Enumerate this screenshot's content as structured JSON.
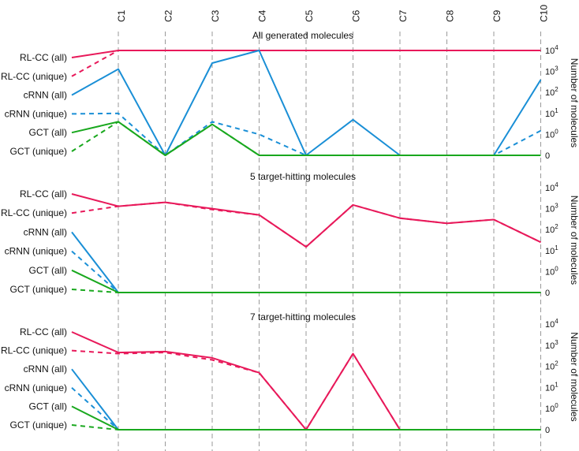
{
  "chart_data": {
    "type": "line",
    "categories": [
      "C1",
      "C2",
      "C3",
      "C4",
      "C5",
      "C6",
      "C7",
      "C8",
      "C9",
      "C10"
    ],
    "colors": {
      "RL-CC": "#e8195a",
      "cRNN": "#1a8fd6",
      "GCT": "#19a81e"
    },
    "y_axis": {
      "label": "Number of molecules",
      "ticks": [
        {
          "value": "0",
          "base": "",
          "exp": ""
        },
        {
          "value": "1",
          "base": "10",
          "exp": "0"
        },
        {
          "value": "10",
          "base": "10",
          "exp": "1"
        },
        {
          "value": "100",
          "base": "10",
          "exp": "2"
        },
        {
          "value": "1000",
          "base": "10",
          "exp": "3"
        },
        {
          "value": "10000",
          "base": "10",
          "exp": "4"
        }
      ]
    },
    "panels": [
      {
        "title": "All generated molecules",
        "series": [
          {
            "name": "RL-CC (all)",
            "values": [
              10000,
              10000,
              10000,
              10000,
              10000,
              10000,
              10000,
              10000,
              10000,
              10000
            ]
          },
          {
            "name": "RL-CC (unique)",
            "values": [
              10000,
              10000,
              10000,
              10000,
              10000,
              10000,
              10000,
              10000,
              10000,
              10000
            ]
          },
          {
            "name": "cRNN (all)",
            "values": [
              1300,
              0,
              2500,
              10000,
              0,
              5,
              0,
              0,
              0,
              400
            ]
          },
          {
            "name": "cRNN (unique)",
            "values": [
              10,
              0,
              4,
              1,
              0,
              0,
              0,
              0,
              0,
              1.5
            ]
          },
          {
            "name": "GCT (all)",
            "values": [
              4,
              0,
              3,
              0,
              0,
              0,
              0,
              0,
              0,
              0
            ]
          },
          {
            "name": "GCT (unique)",
            "values": [
              4,
              0,
              3,
              0,
              0,
              0,
              0,
              0,
              0,
              0
            ]
          }
        ]
      },
      {
        "title": "5 target-hitting molecules",
        "series": [
          {
            "name": "RL-CC (all)",
            "values": [
              1300,
              2000,
              1000,
              500,
              15,
              1500,
              350,
              200,
              300,
              25
            ]
          },
          {
            "name": "RL-CC (unique)",
            "values": [
              1300,
              2000,
              900,
              500,
              15,
              1500,
              350,
              200,
              300,
              25
            ]
          },
          {
            "name": "cRNN (all)",
            "values": [
              0,
              0,
              0,
              0,
              0,
              0,
              0,
              0,
              0,
              0
            ]
          },
          {
            "name": "cRNN (unique)",
            "values": [
              0,
              0,
              0,
              0,
              0,
              0,
              0,
              0,
              0,
              0
            ]
          },
          {
            "name": "GCT (all)",
            "values": [
              0,
              0,
              0,
              0,
              0,
              0,
              0,
              0,
              0,
              0
            ]
          },
          {
            "name": "GCT (unique)",
            "values": [
              0,
              0,
              0,
              0,
              0,
              0,
              0,
              0,
              0,
              0
            ]
          }
        ]
      },
      {
        "title": "7 target-hitting molecules",
        "series": [
          {
            "name": "RL-CC (all)",
            "values": [
              450,
              500,
              250,
              50,
              0,
              400,
              0,
              0,
              0,
              0
            ]
          },
          {
            "name": "RL-CC (unique)",
            "values": [
              400,
              450,
              200,
              50,
              0,
              400,
              0,
              0,
              0,
              0
            ]
          },
          {
            "name": "cRNN (all)",
            "values": [
              0,
              0,
              0,
              0,
              0,
              0,
              0,
              0,
              0,
              0
            ]
          },
          {
            "name": "cRNN (unique)",
            "values": [
              0,
              0,
              0,
              0,
              0,
              0,
              0,
              0,
              0,
              0
            ]
          },
          {
            "name": "GCT (all)",
            "values": [
              0,
              0,
              0,
              0,
              0,
              0,
              0,
              0,
              0,
              0
            ]
          },
          {
            "name": "GCT (unique)",
            "values": [
              0,
              0,
              0,
              0,
              0,
              0,
              0,
              0,
              0,
              0
            ]
          }
        ]
      }
    ]
  }
}
